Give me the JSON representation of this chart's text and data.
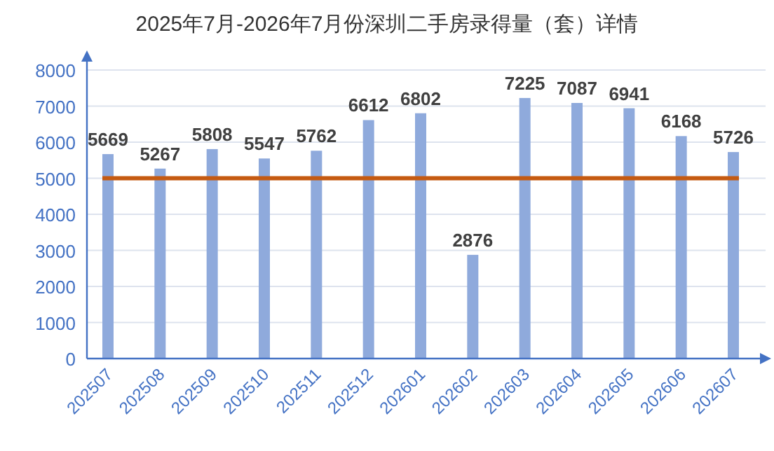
{
  "chart_data": {
    "type": "bar",
    "title": "2025年7月-2026年7月份深圳二手房录得量（套）详情",
    "categories": [
      "202507",
      "202508",
      "202509",
      "202510",
      "202511",
      "202512",
      "202601",
      "202602",
      "202603",
      "202604",
      "202605",
      "202606",
      "202607"
    ],
    "values": [
      5669,
      5267,
      5808,
      5547,
      5762,
      6612,
      6802,
      2876,
      7225,
      7087,
      6941,
      6168,
      5726
    ],
    "color": "#8faadc",
    "ylim": [
      0,
      8000
    ],
    "yticks": [
      0,
      1000,
      2000,
      3000,
      4000,
      5000,
      6000,
      7000,
      8000
    ],
    "grid": "y",
    "data_labels": true,
    "ref_lines": [
      {
        "axis": "y",
        "value": 5000,
        "color": "#c55a11"
      }
    ]
  }
}
